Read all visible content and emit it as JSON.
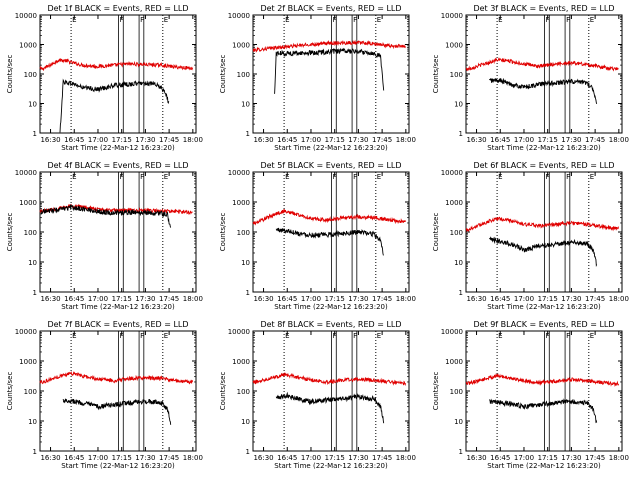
{
  "figure": {
    "ylabel": "Counts/sec",
    "xlabel": "Start Time (22-Mar-12 16:23:20)",
    "colors": {
      "events": "#000000",
      "lld": "#e00000",
      "axes": "#000000",
      "background": "#ffffff"
    }
  },
  "chart_data": [
    {
      "type": "line",
      "title": "Det 1f BLACK = Events, RED = LLD",
      "x_ticks": [
        "16:30",
        "16:45",
        "17:00",
        "17:15",
        "17:30",
        "17:45",
        "18:00"
      ],
      "y_ticks": [
        "1",
        "10",
        "100",
        "1000",
        "10000"
      ],
      "xlim": [
        "16:23:20",
        "18:02:00"
      ],
      "ylim": [
        1,
        10000
      ],
      "yscale": "log",
      "markers": {
        "dotted": [
          "16:43",
          "17:41"
        ],
        "solid": [
          "17:13",
          "17:16",
          "17:26",
          "17:29"
        ],
        "labels": [
          "E",
          "F",
          "F",
          "E"
        ]
      },
      "series": [
        {
          "color": "#e00000",
          "start": "16:23:20",
          "end": "18:00:00",
          "x": [
            "16:25",
            "16:30",
            "16:35",
            "16:40",
            "16:43",
            "16:50",
            "17:00",
            "17:10",
            "17:20",
            "17:30",
            "17:40",
            "17:50",
            "17:58"
          ],
          "y": [
            150,
            200,
            300,
            280,
            250,
            200,
            180,
            200,
            220,
            210,
            200,
            170,
            160
          ]
        },
        {
          "color": "#000000",
          "start": "16:36:00",
          "end": "17:45:00",
          "x": [
            "16:36",
            "16:38",
            "16:45",
            "16:50",
            "17:00",
            "17:05",
            "17:10",
            "17:20",
            "17:30",
            "17:35",
            "17:40",
            "17:43",
            "17:45"
          ],
          "y": [
            1,
            55,
            45,
            35,
            30,
            35,
            40,
            45,
            50,
            45,
            35,
            20,
            10
          ]
        }
      ]
    },
    {
      "type": "line",
      "title": "Det 2f BLACK = Events, RED = LLD",
      "x_ticks": [
        "16:30",
        "16:45",
        "17:00",
        "17:15",
        "17:30",
        "17:45",
        "18:00"
      ],
      "y_ticks": [
        "1",
        "10",
        "100",
        "1000",
        "10000"
      ],
      "xlim": [
        "16:23:20",
        "18:02:00"
      ],
      "ylim": [
        1,
        10000
      ],
      "yscale": "log",
      "markers": {
        "dotted": [
          "16:43",
          "17:41"
        ],
        "solid": [
          "17:13",
          "17:16",
          "17:26",
          "17:29"
        ],
        "labels": [
          "E",
          "F",
          "F",
          "E"
        ]
      },
      "series": [
        {
          "color": "#e00000",
          "start": "16:23:20",
          "end": "18:00:00",
          "x": [
            "16:25",
            "16:35",
            "16:45",
            "17:00",
            "17:10",
            "17:20",
            "17:30",
            "17:40",
            "17:50",
            "17:58"
          ],
          "y": [
            650,
            750,
            850,
            1000,
            1100,
            1150,
            1150,
            1050,
            900,
            850
          ]
        },
        {
          "color": "#000000",
          "start": "16:37:00",
          "end": "17:46:00",
          "x": [
            "16:37",
            "16:38",
            "16:45",
            "17:00",
            "17:10",
            "17:20",
            "17:30",
            "17:40",
            "17:44",
            "17:46"
          ],
          "y": [
            20,
            500,
            500,
            520,
            560,
            600,
            580,
            500,
            400,
            30
          ]
        }
      ]
    },
    {
      "type": "line",
      "title": "Det 3f BLACK = Events, RED = LLD",
      "x_ticks": [
        "16:30",
        "16:45",
        "17:00",
        "17:15",
        "17:30",
        "17:45",
        "18:00"
      ],
      "y_ticks": [
        "1",
        "10",
        "100",
        "1000",
        "10000"
      ],
      "xlim": [
        "16:23:20",
        "18:02:00"
      ],
      "ylim": [
        1,
        10000
      ],
      "yscale": "log",
      "markers": {
        "dotted": [
          "16:43",
          "17:41"
        ],
        "solid": [
          "17:13",
          "17:16",
          "17:26",
          "17:29"
        ],
        "labels": [
          "E",
          "F",
          "F",
          "E"
        ]
      },
      "series": [
        {
          "color": "#e00000",
          "start": "16:23:20",
          "end": "18:00:00",
          "x": [
            "16:25",
            "16:35",
            "16:43",
            "16:50",
            "17:00",
            "17:10",
            "17:20",
            "17:30",
            "17:40",
            "17:50",
            "17:58"
          ],
          "y": [
            150,
            220,
            300,
            280,
            220,
            180,
            220,
            240,
            210,
            170,
            150
          ]
        },
        {
          "color": "#000000",
          "start": "16:38:00",
          "end": "17:46:00",
          "x": [
            "16:38",
            "16:45",
            "16:55",
            "17:00",
            "17:10",
            "17:20",
            "17:30",
            "17:40",
            "17:44",
            "17:46"
          ],
          "y": [
            60,
            60,
            40,
            35,
            45,
            50,
            55,
            50,
            30,
            10
          ]
        }
      ]
    },
    {
      "type": "line",
      "title": "Det 4f BLACK = Events, RED = LLD",
      "x_ticks": [
        "16:30",
        "16:45",
        "17:00",
        "17:15",
        "17:30",
        "17:45",
        "18:00"
      ],
      "y_ticks": [
        "1",
        "10",
        "100",
        "1000",
        "10000"
      ],
      "xlim": [
        "16:23:20",
        "18:02:00"
      ],
      "ylim": [
        1,
        10000
      ],
      "yscale": "log",
      "markers": {
        "dotted": [
          "16:43",
          "17:41"
        ],
        "solid": [
          "17:13",
          "17:16",
          "17:26",
          "17:29"
        ],
        "labels": [
          "E",
          "F",
          "F",
          "E"
        ]
      },
      "series": [
        {
          "color": "#e00000",
          "start": "16:23:20",
          "end": "18:00:00",
          "x": [
            "16:25",
            "16:35",
            "16:43",
            "16:50",
            "17:00",
            "17:10",
            "17:20",
            "17:30",
            "17:40",
            "17:50",
            "17:58"
          ],
          "y": [
            500,
            600,
            750,
            700,
            560,
            520,
            530,
            520,
            500,
            480,
            450
          ]
        },
        {
          "color": "#000000",
          "start": "16:24:00",
          "end": "17:46:00",
          "x": [
            "16:24",
            "16:35",
            "16:43",
            "16:50",
            "17:00",
            "17:10",
            "17:20",
            "17:30",
            "17:40",
            "17:44",
            "17:46"
          ],
          "y": [
            480,
            550,
            650,
            600,
            480,
            430,
            450,
            440,
            420,
            380,
            120
          ]
        }
      ]
    },
    {
      "type": "line",
      "title": "Det 5f BLACK = Events, RED = LLD",
      "x_ticks": [
        "16:30",
        "16:45",
        "17:00",
        "17:15",
        "17:30",
        "17:45",
        "18:00"
      ],
      "y_ticks": [
        "1",
        "10",
        "100",
        "1000",
        "10000"
      ],
      "xlim": [
        "16:23:20",
        "18:02:00"
      ],
      "ylim": [
        1,
        10000
      ],
      "yscale": "log",
      "markers": {
        "dotted": [
          "16:43",
          "17:41"
        ],
        "solid": [
          "17:13",
          "17:16",
          "17:26",
          "17:29"
        ],
        "labels": [
          "E",
          "F",
          "F",
          "E"
        ]
      },
      "series": [
        {
          "color": "#e00000",
          "start": "16:23:20",
          "end": "18:00:00",
          "x": [
            "16:25",
            "16:35",
            "16:43",
            "16:50",
            "17:00",
            "17:10",
            "17:20",
            "17:30",
            "17:40",
            "17:50",
            "17:58"
          ],
          "y": [
            200,
            350,
            500,
            400,
            280,
            250,
            300,
            320,
            300,
            250,
            220
          ]
        },
        {
          "color": "#000000",
          "start": "16:38:00",
          "end": "17:46:00",
          "x": [
            "16:38",
            "16:45",
            "16:55",
            "17:00",
            "17:10",
            "17:20",
            "17:30",
            "17:40",
            "17:44",
            "17:46"
          ],
          "y": [
            120,
            110,
            85,
            80,
            80,
            90,
            100,
            85,
            50,
            15
          ]
        }
      ]
    },
    {
      "type": "line",
      "title": "Det 6f BLACK = Events, RED = LLD",
      "x_ticks": [
        "16:30",
        "16:45",
        "17:00",
        "17:15",
        "17:30",
        "17:45",
        "18:00"
      ],
      "y_ticks": [
        "1",
        "10",
        "100",
        "1000",
        "10000"
      ],
      "xlim": [
        "16:23:20",
        "18:02:00"
      ],
      "ylim": [
        1,
        10000
      ],
      "yscale": "log",
      "markers": {
        "dotted": [
          "16:43",
          "17:41"
        ],
        "solid": [
          "17:13",
          "17:16",
          "17:26",
          "17:29"
        ],
        "labels": [
          "E",
          "F",
          "F",
          "E"
        ]
      },
      "series": [
        {
          "color": "#e00000",
          "start": "16:23:20",
          "end": "18:00:00",
          "x": [
            "16:25",
            "16:35",
            "16:43",
            "16:50",
            "17:00",
            "17:10",
            "17:20",
            "17:30",
            "17:40",
            "17:50",
            "17:58"
          ],
          "y": [
            120,
            200,
            280,
            250,
            180,
            160,
            180,
            200,
            180,
            150,
            130
          ]
        },
        {
          "color": "#000000",
          "start": "16:38:00",
          "end": "17:46:00",
          "x": [
            "16:38",
            "16:45",
            "16:55",
            "17:00",
            "17:05",
            "17:10",
            "17:20",
            "17:30",
            "17:40",
            "17:44",
            "17:46"
          ],
          "y": [
            55,
            50,
            35,
            25,
            30,
            35,
            40,
            45,
            40,
            25,
            8
          ]
        }
      ]
    },
    {
      "type": "line",
      "title": "Det 7f BLACK = Events, RED = LLD",
      "x_ticks": [
        "16:30",
        "16:45",
        "17:00",
        "17:15",
        "17:30",
        "17:45",
        "18:00"
      ],
      "y_ticks": [
        "1",
        "10",
        "100",
        "1000",
        "10000"
      ],
      "xlim": [
        "16:23:20",
        "18:02:00"
      ],
      "ylim": [
        1,
        10000
      ],
      "yscale": "log",
      "markers": {
        "dotted": [
          "16:43",
          "17:41"
        ],
        "solid": [
          "17:13",
          "17:16",
          "17:26",
          "17:29"
        ],
        "labels": [
          "E",
          "F",
          "F",
          "E"
        ]
      },
      "series": [
        {
          "color": "#e00000",
          "start": "16:23:20",
          "end": "18:00:00",
          "x": [
            "16:25",
            "16:35",
            "16:43",
            "16:50",
            "17:00",
            "17:10",
            "17:20",
            "17:30",
            "17:40",
            "17:50",
            "17:58"
          ],
          "y": [
            200,
            300,
            400,
            320,
            250,
            220,
            260,
            280,
            260,
            220,
            200
          ]
        },
        {
          "color": "#000000",
          "start": "16:38:00",
          "end": "17:46:00",
          "x": [
            "16:38",
            "16:45",
            "16:55",
            "17:00",
            "17:10",
            "17:20",
            "17:30",
            "17:40",
            "17:44",
            "17:46"
          ],
          "y": [
            50,
            45,
            35,
            30,
            35,
            40,
            45,
            40,
            25,
            8
          ]
        }
      ]
    },
    {
      "type": "line",
      "title": "Det 8f BLACK = Events, RED = LLD",
      "x_ticks": [
        "16:30",
        "16:45",
        "17:00",
        "17:15",
        "17:30",
        "17:45",
        "18:00"
      ],
      "y_ticks": [
        "1",
        "10",
        "100",
        "1000",
        "10000"
      ],
      "xlim": [
        "16:23:20",
        "18:02:00"
      ],
      "ylim": [
        1,
        10000
      ],
      "yscale": "log",
      "markers": {
        "dotted": [
          "16:43",
          "17:41"
        ],
        "solid": [
          "17:13",
          "17:16",
          "17:26",
          "17:29"
        ],
        "labels": [
          "E",
          "F",
          "F",
          "E"
        ]
      },
      "series": [
        {
          "color": "#e00000",
          "start": "16:23:20",
          "end": "18:00:00",
          "x": [
            "16:25",
            "16:35",
            "16:43",
            "16:50",
            "17:00",
            "17:10",
            "17:20",
            "17:30",
            "17:40",
            "17:50",
            "17:58"
          ],
          "y": [
            200,
            280,
            350,
            300,
            230,
            200,
            230,
            250,
            230,
            200,
            180
          ]
        },
        {
          "color": "#000000",
          "start": "16:38:00",
          "end": "17:46:00",
          "x": [
            "16:38",
            "16:45",
            "16:55",
            "17:00",
            "17:10",
            "17:20",
            "17:30",
            "17:40",
            "17:44",
            "17:46"
          ],
          "y": [
            60,
            70,
            50,
            45,
            50,
            55,
            65,
            55,
            30,
            10
          ]
        }
      ]
    },
    {
      "type": "line",
      "title": "Det 9f BLACK = Events, RED = LLD",
      "x_ticks": [
        "16:30",
        "16:45",
        "17:00",
        "17:15",
        "17:30",
        "17:45",
        "18:00"
      ],
      "y_ticks": [
        "1",
        "10",
        "100",
        "1000",
        "10000"
      ],
      "xlim": [
        "16:23:20",
        "18:02:00"
      ],
      "ylim": [
        1,
        10000
      ],
      "yscale": "log",
      "markers": {
        "dotted": [
          "16:43",
          "17:41"
        ],
        "solid": [
          "17:13",
          "17:16",
          "17:26",
          "17:29"
        ],
        "labels": [
          "E",
          "F",
          "F",
          "E"
        ]
      },
      "series": [
        {
          "color": "#e00000",
          "start": "16:23:20",
          "end": "18:00:00",
          "x": [
            "16:25",
            "16:35",
            "16:43",
            "16:50",
            "17:00",
            "17:10",
            "17:20",
            "17:30",
            "17:40",
            "17:50",
            "17:58"
          ],
          "y": [
            180,
            250,
            320,
            280,
            220,
            190,
            210,
            240,
            220,
            190,
            170
          ]
        },
        {
          "color": "#000000",
          "start": "16:38:00",
          "end": "17:46:00",
          "x": [
            "16:38",
            "16:45",
            "16:55",
            "17:00",
            "17:10",
            "17:20",
            "17:30",
            "17:40",
            "17:44",
            "17:46"
          ],
          "y": [
            45,
            40,
            35,
            30,
            35,
            40,
            45,
            40,
            25,
            8
          ]
        }
      ]
    }
  ]
}
